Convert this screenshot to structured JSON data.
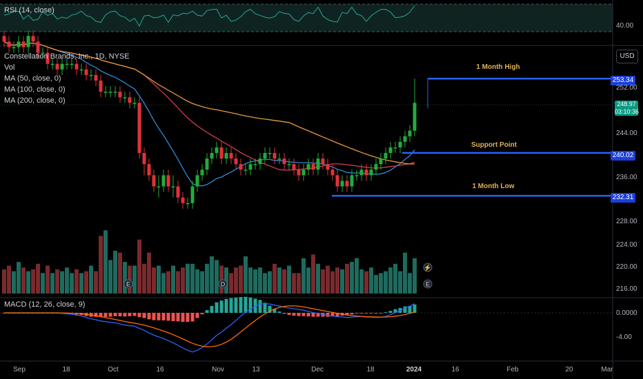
{
  "rsi": {
    "label": "RSI (14, close)",
    "level": "40.00"
  },
  "header": {
    "symbol": "Constellation Brands, Inc., 1D, NYSE",
    "vol": "Vol",
    "ma50": "MA (50, close, 0)",
    "ma100": "MA (100, close, 0)",
    "ma200": "MA (200, close, 0)"
  },
  "currency": "USD",
  "annotations": {
    "month_high": {
      "label": "1 Month High",
      "price": "253.34"
    },
    "support": {
      "label": "Support Point",
      "price": "240.02"
    },
    "month_low": {
      "label": "1 Month Low",
      "price": "232.31"
    }
  },
  "last_price": {
    "value": "248.97",
    "countdown": "03:10:36"
  },
  "price_axis": [
    "252.00",
    "248.00",
    "244.00",
    "240.00",
    "236.00",
    "232.00",
    "228.00",
    "224.00",
    "220.00",
    "216.00"
  ],
  "macd": {
    "label": "MACD (12, 26, close, 9)",
    "axis": [
      "0.0000",
      "-4.00"
    ]
  },
  "time_axis": [
    "Sep",
    "18",
    "Oct",
    "16",
    "Nov",
    "13",
    "Dec",
    "18",
    "2024",
    "16",
    "Feb",
    "20",
    "Mar"
  ],
  "events": {
    "earnings": "E",
    "dividend": "D",
    "split": "⚡"
  },
  "colors": {
    "up": "#22ab3c",
    "down": "#e0323a",
    "level": "#2962ff",
    "ma50": "#2e8bd8",
    "ma100": "#d23a52",
    "ma200": "#e89a3c",
    "rsi": "#26a69a",
    "annotation": "#e0b256"
  },
  "chart_data": {
    "type": "candlestick",
    "x": [
      "Sep 5",
      "Sep 6",
      "Sep 7",
      "Sep 8",
      "Sep 11",
      "Sep 12",
      "Sep 13",
      "Sep 14",
      "Sep 15",
      "Sep 18",
      "Sep 19",
      "Sep 20",
      "Sep 21",
      "Sep 22",
      "Sep 25",
      "Sep 26",
      "Sep 27",
      "Sep 28",
      "Sep 29",
      "Oct 2",
      "Oct 3",
      "Oct 4",
      "Oct 5",
      "Oct 6",
      "Oct 9",
      "Oct 10",
      "Oct 11",
      "Oct 12",
      "Oct 13",
      "Oct 16",
      "Oct 17",
      "Oct 18",
      "Oct 19",
      "Oct 20",
      "Oct 23",
      "Oct 24",
      "Oct 25",
      "Oct 26",
      "Oct 27",
      "Oct 30",
      "Oct 31",
      "Nov 1",
      "Nov 2",
      "Nov 3",
      "Nov 6",
      "Nov 7",
      "Nov 8",
      "Nov 9",
      "Nov 10",
      "Nov 13",
      "Nov 14",
      "Nov 15",
      "Nov 16",
      "Nov 17",
      "Nov 20",
      "Nov 21",
      "Nov 22",
      "Nov 24",
      "Nov 27",
      "Nov 28",
      "Nov 29",
      "Nov 30",
      "Dec 1",
      "Dec 4",
      "Dec 5",
      "Dec 6",
      "Dec 7",
      "Dec 8",
      "Dec 11",
      "Dec 12",
      "Dec 13",
      "Dec 14",
      "Dec 15",
      "Dec 18",
      "Dec 19",
      "Dec 20",
      "Dec 21",
      "Dec 22",
      "Dec 26",
      "Dec 27",
      "Dec 28",
      "Dec 29",
      "Jan 2",
      "Jan 3",
      "Jan 4",
      "Jan 5"
    ],
    "open": [
      261,
      260,
      259,
      259,
      260,
      259,
      261,
      260,
      258,
      258,
      256,
      256,
      255,
      256,
      256,
      256,
      255,
      255,
      254,
      254,
      253,
      251,
      251,
      251,
      251,
      250,
      250,
      249,
      249,
      240,
      238,
      236,
      234,
      234,
      236,
      234,
      234,
      232,
      231,
      231,
      234,
      236,
      237,
      239,
      240,
      241,
      239,
      240,
      239,
      238,
      237,
      237,
      238,
      238,
      239,
      240,
      240,
      239,
      239,
      238,
      238,
      237,
      236,
      237,
      238,
      237,
      239,
      238,
      237,
      236,
      234,
      235,
      234,
      236,
      236,
      237,
      236,
      237,
      238,
      239,
      240,
      241,
      241,
      242,
      243,
      244
    ],
    "close": [
      260,
      259,
      259,
      260,
      259,
      261,
      260,
      258,
      258,
      256,
      256,
      255,
      256,
      256,
      256,
      255,
      255,
      254,
      254,
      253,
      251,
      251,
      251,
      251,
      250,
      250,
      249,
      249,
      240,
      238,
      236,
      234,
      234,
      236,
      234,
      234,
      232,
      231,
      231,
      234,
      236,
      237,
      239,
      240,
      241,
      239,
      240,
      239,
      238,
      237,
      237,
      238,
      238,
      239,
      240,
      240,
      239,
      239,
      238,
      238,
      237,
      236,
      237,
      238,
      237,
      239,
      238,
      237,
      236,
      234,
      235,
      234,
      236,
      236,
      237,
      236,
      237,
      238,
      239,
      240,
      241,
      241,
      242,
      243,
      244,
      249
    ],
    "high": [
      262,
      261,
      260,
      261,
      261,
      262,
      262,
      261,
      259,
      259,
      257,
      257,
      257,
      257,
      257,
      257,
      256,
      256,
      255,
      255,
      254,
      252,
      252,
      252,
      252,
      251,
      251,
      250,
      250,
      241,
      239,
      237,
      236,
      237,
      237,
      236,
      235,
      233,
      232,
      235,
      237,
      238,
      240,
      241,
      242,
      242,
      241,
      241,
      240,
      239,
      238,
      239,
      239,
      240,
      241,
      241,
      241,
      240,
      240,
      239,
      239,
      238,
      238,
      239,
      239,
      240,
      240,
      239,
      238,
      237,
      236,
      236,
      237,
      237,
      238,
      238,
      238,
      239,
      240,
      241,
      242,
      242,
      243,
      244,
      245,
      253.34
    ],
    "low": [
      259,
      258,
      258,
      258,
      258,
      258,
      259,
      257,
      257,
      255,
      255,
      254,
      254,
      255,
      255,
      254,
      254,
      253,
      253,
      252,
      250,
      250,
      250,
      250,
      249,
      249,
      248,
      248,
      239,
      236,
      235,
      233,
      232,
      233,
      233,
      232,
      231,
      230,
      230,
      230,
      233,
      235,
      236,
      238,
      239,
      238,
      238,
      238,
      237,
      236,
      236,
      236,
      237,
      237,
      238,
      239,
      238,
      238,
      237,
      237,
      236,
      235,
      235,
      236,
      236,
      236,
      237,
      236,
      235,
      233,
      233,
      233,
      233,
      235,
      235,
      235,
      235,
      236,
      237,
      238,
      239,
      240,
      240,
      241,
      242,
      243
    ],
    "volume": [
      1.3,
      1.5,
      1.2,
      1.7,
      1.4,
      1.2,
      1.3,
      1.6,
      1.1,
      1.5,
      1.1,
      1.3,
      1.2,
      1.4,
      1.1,
      1.3,
      1.1,
      1.2,
      1.5,
      1.2,
      3.1,
      3.4,
      1.8,
      2.3,
      2.2,
      1.7,
      1.5,
      1.5,
      2.9,
      1.6,
      2.2,
      1.4,
      1.5,
      1.1,
      1.2,
      1.5,
      1.2,
      1.4,
      1.6,
      1.6,
      1.3,
      1.2,
      1.6,
      2.0,
      1.8,
      1.5,
      1.4,
      1.1,
      1.4,
      1.5,
      2.0,
      1.4,
      1.3,
      1.4,
      1.1,
      1.2,
      1.6,
      1.4,
      1.3,
      1.5,
      1.1,
      1.1,
      1.9,
      1.4,
      2.1,
      1.6,
      1.3,
      1.5,
      1.2,
      1.4,
      1.3,
      1.6,
      1.7,
      1.9,
      1.3,
      1.2,
      1.4,
      1.0,
      1.1,
      1.2,
      1.4,
      1.6,
      1.2,
      2.2,
      1.1,
      1.9
    ],
    "levels": [
      {
        "name": "1 Month High",
        "value": 253.34
      },
      {
        "name": "Support Point",
        "value": 240.02
      },
      {
        "name": "1 Month Low",
        "value": 232.31
      }
    ],
    "ylim": [
      215,
      262
    ]
  }
}
